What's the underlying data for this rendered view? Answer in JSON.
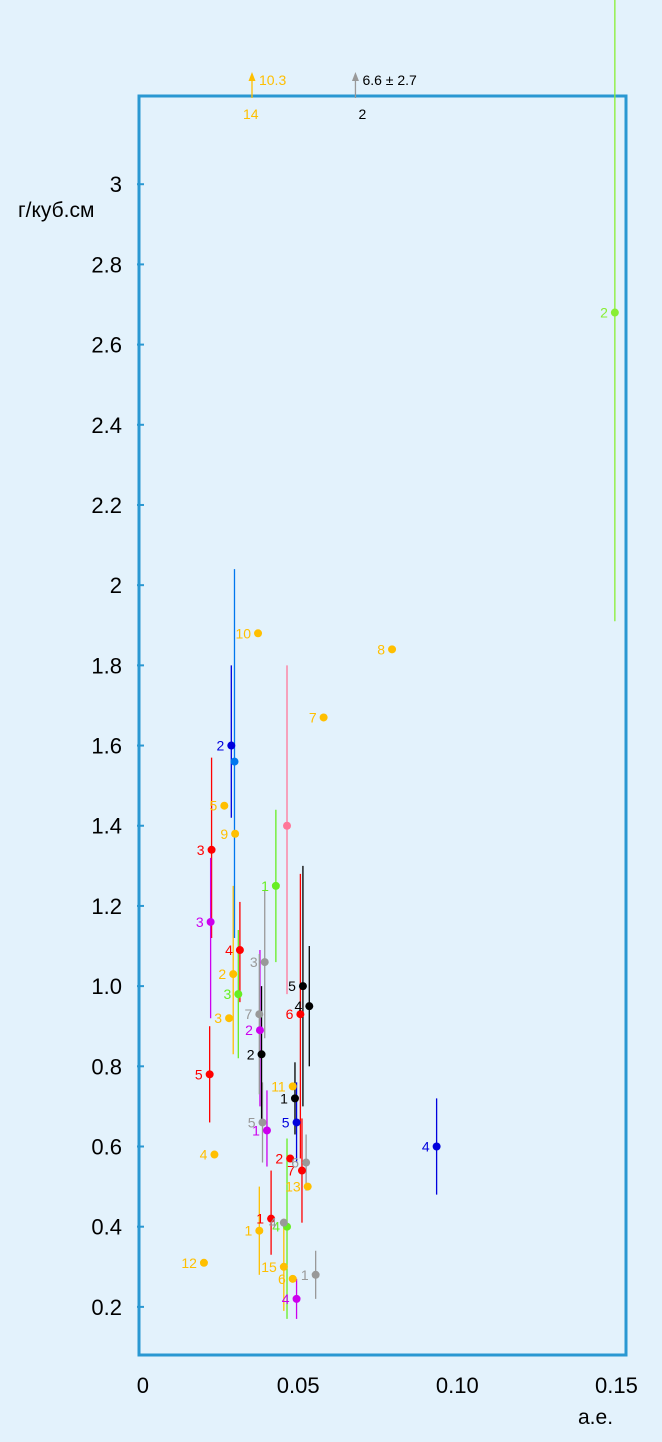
{
  "chart_data": {
    "type": "scatter",
    "title": "",
    "xlabel": "а.е.",
    "ylabel": "г/куб.см",
    "xlim": [
      0,
      0.153
    ],
    "ylim": [
      0.08,
      3.22
    ],
    "x_ticks": [
      "0",
      "0.05",
      "0.10",
      "0.15"
    ],
    "x_tick_values": [
      0,
      0.05,
      0.1,
      0.15
    ],
    "y_ticks": [
      "0.2",
      "0.4",
      "0.6",
      "0.8",
      "1.0",
      "1.2",
      "1.4",
      "1.6",
      "1.8",
      "2",
      "2.2",
      "2.4",
      "2.6",
      "2.8",
      "3"
    ],
    "y_tick_values": [
      0.2,
      0.4,
      0.6,
      0.8,
      1.0,
      1.2,
      1.4,
      1.6,
      1.8,
      2.0,
      2.2,
      2.4,
      2.6,
      2.8,
      3.0
    ],
    "grid": false,
    "points": [
      {
        "label": "10",
        "x": 0.0374,
        "y": 1.88,
        "color": "#ffbf00"
      },
      {
        "label": "8",
        "x": 0.0795,
        "y": 1.84,
        "color": "#ffbf00"
      },
      {
        "label": "7",
        "x": 0.058,
        "y": 1.67,
        "color": "#ffbf00"
      },
      {
        "label": "5",
        "x": 0.0268,
        "y": 1.45,
        "color": "#ffbf00"
      },
      {
        "label": "9",
        "x": 0.0302,
        "y": 1.38,
        "color": "#ffbf00"
      },
      {
        "label": "2",
        "x": 0.0296,
        "y": 1.03,
        "color": "#ffbf00",
        "err_low": 0.83,
        "err_high": 1.25
      },
      {
        "label": "3",
        "x": 0.0283,
        "y": 0.92,
        "color": "#ffbf00"
      },
      {
        "label": "4",
        "x": 0.0237,
        "y": 0.58,
        "color": "#ffbf00"
      },
      {
        "label": "11",
        "x": 0.0483,
        "y": 0.75,
        "color": "#ffbf00"
      },
      {
        "label": "13",
        "x": 0.053,
        "y": 0.5,
        "color": "#ffbf00"
      },
      {
        "label": "1",
        "x": 0.0378,
        "y": 0.39,
        "color": "#ffbf00",
        "err_low": 0.28,
        "err_high": 0.5
      },
      {
        "label": "15",
        "x": 0.0455,
        "y": 0.3,
        "color": "#ffbf00",
        "err_low": 0.19,
        "err_high": 0.42
      },
      {
        "label": "6",
        "x": 0.0483,
        "y": 0.27,
        "color": "#ffbf00"
      },
      {
        "label": "12",
        "x": 0.0204,
        "y": 0.31,
        "color": "#ffbf00"
      },
      {
        "label": "3",
        "x": 0.0228,
        "y": 1.34,
        "color": "#ff0000",
        "err_low": 1.12,
        "err_high": 1.57
      },
      {
        "label": "4",
        "x": 0.0317,
        "y": 1.09,
        "color": "#ff0000",
        "err_low": 0.96,
        "err_high": 1.21
      },
      {
        "label": "6",
        "x": 0.0507,
        "y": 0.93,
        "color": "#ff0000",
        "err_low": 0.57,
        "err_high": 1.28
      },
      {
        "label": "5",
        "x": 0.0222,
        "y": 0.78,
        "color": "#ff0000",
        "err_low": 0.66,
        "err_high": 0.9
      },
      {
        "label": "2",
        "x": 0.0475,
        "y": 0.57,
        "color": "#ff0000"
      },
      {
        "label": "7",
        "x": 0.0512,
        "y": 0.54,
        "color": "#ff0000",
        "err_low": 0.41,
        "err_high": 0.67
      },
      {
        "label": "1",
        "x": 0.0415,
        "y": 0.42,
        "color": "#ff0000",
        "err_low": 0.33,
        "err_high": 0.54
      },
      {
        "label": "3",
        "x": 0.0225,
        "y": 1.16,
        "color": "#cc00ee",
        "err_low": 0.92,
        "err_high": 1.32
      },
      {
        "label": "2",
        "x": 0.038,
        "y": 0.89,
        "color": "#cc00ee",
        "err_low": 0.7,
        "err_high": 1.09
      },
      {
        "label": "1",
        "x": 0.0402,
        "y": 0.64,
        "color": "#cc00ee",
        "err_low": 0.55,
        "err_high": 0.74
      },
      {
        "label": "4",
        "x": 0.0495,
        "y": 0.22,
        "color": "#cc00ee",
        "err_low": 0.17,
        "err_high": 0.27
      },
      {
        "label": "2",
        "x": 0.029,
        "y": 1.6,
        "color": "#0000dd",
        "err_low": 1.42,
        "err_high": 1.8
      },
      {
        "label": "5",
        "x": 0.0495,
        "y": 0.66,
        "color": "#0000dd",
        "err_low": 0.56,
        "err_high": 0.76
      },
      {
        "label": "4",
        "x": 0.0935,
        "y": 0.6,
        "color": "#0000dd",
        "err_low": 0.48,
        "err_high": 0.72
      },
      {
        "label": "",
        "x": 0.03,
        "y": 1.56,
        "color": "#0077ee",
        "err_low": 1.12,
        "err_high": 2.04
      },
      {
        "label": "1",
        "x": 0.043,
        "y": 1.25,
        "color": "#66ee22",
        "err_low": 1.06,
        "err_high": 1.44
      },
      {
        "label": "3",
        "x": 0.0312,
        "y": 0.98,
        "color": "#66ee22",
        "err_low": 0.82,
        "err_high": 1.14
      },
      {
        "label": "4",
        "x": 0.0465,
        "y": 0.4,
        "color": "#66ee22",
        "err_low": 0.17,
        "err_high": 0.62
      },
      {
        "label": "2",
        "x": 0.1495,
        "y": 2.68,
        "color": "#88ee33",
        "err_low": 1.91,
        "err_high": 3.52
      },
      {
        "label": "",
        "x": 0.0465,
        "y": 1.4,
        "color": "#ff7799",
        "err_low": 0.98,
        "err_high": 1.8
      },
      {
        "label": "3",
        "x": 0.0395,
        "y": 1.06,
        "color": "#999999",
        "err_low": 0.87,
        "err_high": 1.24
      },
      {
        "label": "7",
        "x": 0.0378,
        "y": 0.93,
        "color": "#999999",
        "err_low": 0.73,
        "err_high": 1.08
      },
      {
        "label": "5",
        "x": 0.0388,
        "y": 0.66,
        "color": "#999999",
        "err_low": 0.56,
        "err_high": 0.76
      },
      {
        "label": "6",
        "x": 0.0525,
        "y": 0.56,
        "color": "#999999",
        "err_low": 0.49,
        "err_high": 0.63
      },
      {
        "label": "1",
        "x": 0.0555,
        "y": 0.28,
        "color": "#999999",
        "err_low": 0.22,
        "err_high": 0.34
      },
      {
        "label": "4",
        "x": 0.0455,
        "y": 0.41,
        "color": "#999999"
      },
      {
        "label": "5",
        "x": 0.0515,
        "y": 1.0,
        "color": "#000000",
        "err_low": 0.7,
        "err_high": 1.3
      },
      {
        "label": "4",
        "x": 0.0535,
        "y": 0.95,
        "color": "#000000",
        "err_low": 0.8,
        "err_high": 1.1
      },
      {
        "label": "2",
        "x": 0.0385,
        "y": 0.83,
        "color": "#000000",
        "err_low": 0.66,
        "err_high": 1.0
      },
      {
        "label": "1",
        "x": 0.049,
        "y": 0.72,
        "color": "#000000",
        "err_low": 0.63,
        "err_high": 0.81
      }
    ],
    "off_chart": [
      {
        "label": "14",
        "value_text": "10.3",
        "x": 0.0355,
        "color": "#ffbf00"
      },
      {
        "label": "2",
        "value_text": "6.6 ± 2.7",
        "x": 0.068,
        "color": "#999999"
      }
    ]
  }
}
